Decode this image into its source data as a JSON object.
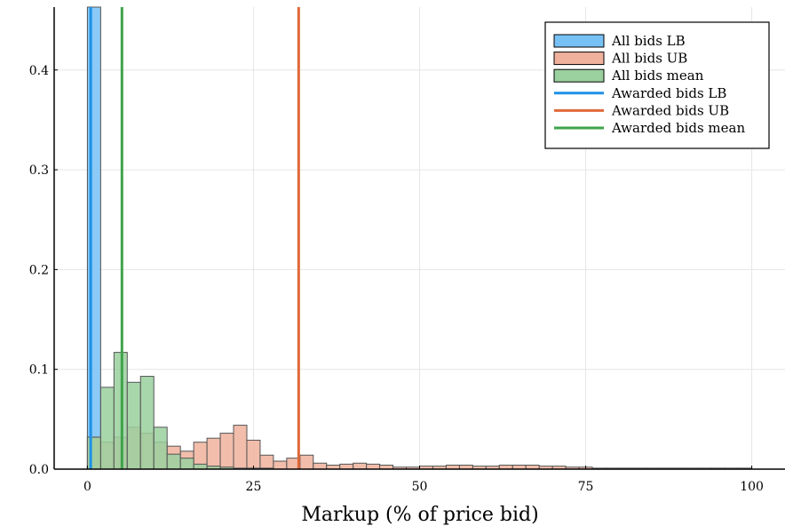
{
  "chart_data": {
    "type": "histogram",
    "title": "",
    "xlabel": "Markup (% of price bid)",
    "ylabel": "",
    "xlim": [
      -5,
      105
    ],
    "ylim": [
      0,
      0.463
    ],
    "xticks": [
      0,
      25,
      50,
      75,
      100
    ],
    "yticks": [
      0.0,
      0.1,
      0.2,
      0.3,
      0.4
    ],
    "ytick_labels": [
      "0.0",
      "0.1",
      "0.2",
      "0.3",
      "0.4"
    ],
    "grid": true,
    "legend_position": "top-right",
    "bin_width": 2,
    "histograms": [
      {
        "name": "All bids LB",
        "color": "#77c1f5",
        "bins": [
          {
            "start": 0,
            "value": 0.463
          },
          {
            "start": 2,
            "value": 0.002
          },
          {
            "start": 4,
            "value": 0.001
          }
        ]
      },
      {
        "name": "All bids UB",
        "color": "#f0b19c",
        "bins": [
          {
            "start": 0,
            "value": 0.032
          },
          {
            "start": 2,
            "value": 0.027
          },
          {
            "start": 4,
            "value": 0.032
          },
          {
            "start": 6,
            "value": 0.042
          },
          {
            "start": 8,
            "value": 0.036
          },
          {
            "start": 10,
            "value": 0.027
          },
          {
            "start": 12,
            "value": 0.023
          },
          {
            "start": 14,
            "value": 0.018
          },
          {
            "start": 16,
            "value": 0.027
          },
          {
            "start": 18,
            "value": 0.031
          },
          {
            "start": 20,
            "value": 0.036
          },
          {
            "start": 22,
            "value": 0.044
          },
          {
            "start": 24,
            "value": 0.029
          },
          {
            "start": 26,
            "value": 0.014
          },
          {
            "start": 28,
            "value": 0.008
          },
          {
            "start": 30,
            "value": 0.011
          },
          {
            "start": 32,
            "value": 0.014
          },
          {
            "start": 34,
            "value": 0.006
          },
          {
            "start": 36,
            "value": 0.004
          },
          {
            "start": 38,
            "value": 0.005
          },
          {
            "start": 40,
            "value": 0.006
          },
          {
            "start": 42,
            "value": 0.005
          },
          {
            "start": 44,
            "value": 0.004
          },
          {
            "start": 46,
            "value": 0.002
          },
          {
            "start": 48,
            "value": 0.002
          },
          {
            "start": 50,
            "value": 0.003
          },
          {
            "start": 52,
            "value": 0.003
          },
          {
            "start": 54,
            "value": 0.004
          },
          {
            "start": 56,
            "value": 0.004
          },
          {
            "start": 58,
            "value": 0.003
          },
          {
            "start": 60,
            "value": 0.003
          },
          {
            "start": 62,
            "value": 0.004
          },
          {
            "start": 64,
            "value": 0.004
          },
          {
            "start": 66,
            "value": 0.004
          },
          {
            "start": 68,
            "value": 0.003
          },
          {
            "start": 70,
            "value": 0.003
          },
          {
            "start": 72,
            "value": 0.002
          },
          {
            "start": 74,
            "value": 0.002
          },
          {
            "start": 76,
            "value": 0.001
          },
          {
            "start": 78,
            "value": 0.001
          },
          {
            "start": 80,
            "value": 0.001
          },
          {
            "start": 82,
            "value": 0.001
          },
          {
            "start": 84,
            "value": 0.001
          },
          {
            "start": 86,
            "value": 0.001
          },
          {
            "start": 88,
            "value": 0.001
          },
          {
            "start": 90,
            "value": 0.001
          },
          {
            "start": 92,
            "value": 0.001
          },
          {
            "start": 94,
            "value": 0.001
          },
          {
            "start": 96,
            "value": 0.001
          },
          {
            "start": 98,
            "value": 0.001
          }
        ]
      },
      {
        "name": "All bids mean",
        "color": "#9ad09e",
        "bins": [
          {
            "start": 0,
            "value": 0.032
          },
          {
            "start": 2,
            "value": 0.082
          },
          {
            "start": 4,
            "value": 0.117
          },
          {
            "start": 6,
            "value": 0.087
          },
          {
            "start": 8,
            "value": 0.093
          },
          {
            "start": 10,
            "value": 0.042
          },
          {
            "start": 12,
            "value": 0.015
          },
          {
            "start": 14,
            "value": 0.011
          },
          {
            "start": 16,
            "value": 0.005
          },
          {
            "start": 18,
            "value": 0.003
          },
          {
            "start": 20,
            "value": 0.002
          },
          {
            "start": 22,
            "value": 0.001
          },
          {
            "start": 24,
            "value": 0.001
          },
          {
            "start": 26,
            "value": 0.001
          }
        ]
      }
    ],
    "vlines": [
      {
        "name": "Awarded bids LB",
        "x": 0.5,
        "color": "#1e92e6"
      },
      {
        "name": "Awarded bids UB",
        "x": 31.8,
        "color": "#e0683a"
      },
      {
        "name": "Awarded bids mean",
        "x": 5.2,
        "color": "#3ea34a"
      }
    ]
  }
}
